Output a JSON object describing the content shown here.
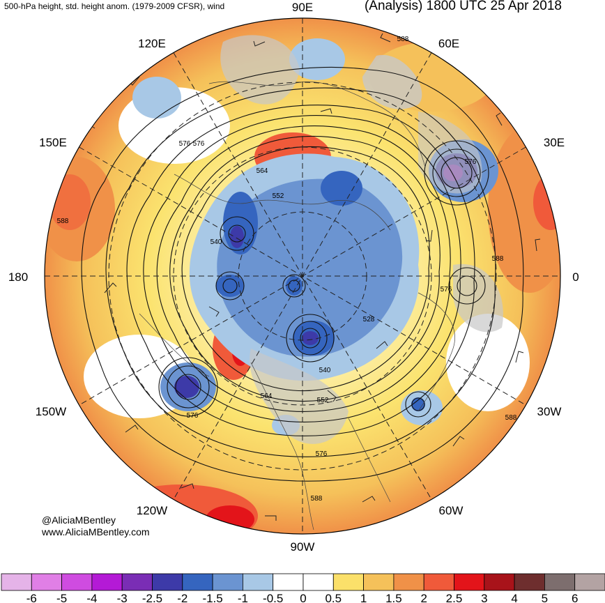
{
  "header": {
    "left_title": "500-hPa height, std. height anom. (1979-2009 CFSR), wind",
    "right_title": "(Analysis) 1800 UTC 25 Apr 2018"
  },
  "credits": {
    "handle": "@AliciaMBentley",
    "website": "www.AliciaMBentley.com"
  },
  "longitude_labels": [
    {
      "text": "90E"
    },
    {
      "text": "60E"
    },
    {
      "text": "30E"
    },
    {
      "text": "0"
    },
    {
      "text": "30W"
    },
    {
      "text": "60W"
    },
    {
      "text": "90W"
    },
    {
      "text": "120W"
    },
    {
      "text": "150W"
    },
    {
      "text": "180"
    },
    {
      "text": "150E"
    },
    {
      "text": "120E"
    }
  ],
  "contour_labels": [
    "588",
    "576",
    "564",
    "552",
    "540",
    "528",
    "576",
    "588",
    "576",
    "540",
    "564",
    "552",
    "576",
    "588",
    "576",
    "588",
    "576",
    "588"
  ],
  "colorbar": {
    "labels": [
      "-6",
      "-5",
      "-4",
      "-3",
      "-2.5",
      "-2",
      "-1.5",
      "-1",
      "-0.5",
      "0",
      "0.5",
      "1",
      "1.5",
      "2",
      "2.5",
      "3",
      "4",
      "5",
      "6"
    ],
    "colors": [
      "#e5b3e8",
      "#e07fe6",
      "#cf4ce0",
      "#b41ad6",
      "#7a2db5",
      "#3d3aa8",
      "#3565bf",
      "#6b94d1",
      "#a8c8e6",
      "#ffffff",
      "#ffffff",
      "#fbe06a",
      "#f5c15a",
      "#f09148",
      "#f05a3a",
      "#e3141a",
      "#a8131a",
      "#6e2e2e",
      "#7d6e6e",
      "#b3a3a3"
    ]
  }
}
